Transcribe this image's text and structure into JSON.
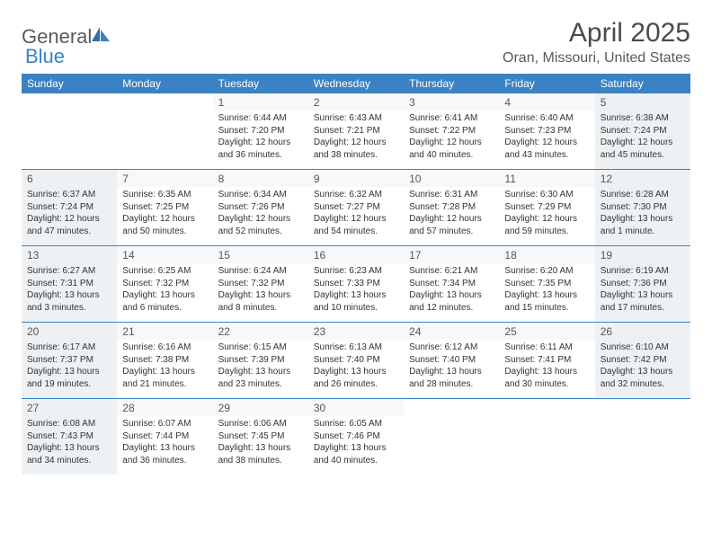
{
  "brand": {
    "word1": "General",
    "word2": "Blue"
  },
  "title": "April 2025",
  "location": "Oran, Missouri, United States",
  "colors": {
    "header_bg": "#3b82c4",
    "shaded_bg": "#eef1f3",
    "text": "#333333",
    "rule": "#3b82c4"
  },
  "daysOfWeek": [
    "Sunday",
    "Monday",
    "Tuesday",
    "Wednesday",
    "Thursday",
    "Friday",
    "Saturday"
  ],
  "weeks": [
    [
      null,
      null,
      {
        "n": "1",
        "sr": "Sunrise: 6:44 AM",
        "ss": "Sunset: 7:20 PM",
        "dl": "Daylight: 12 hours and 36 minutes."
      },
      {
        "n": "2",
        "sr": "Sunrise: 6:43 AM",
        "ss": "Sunset: 7:21 PM",
        "dl": "Daylight: 12 hours and 38 minutes."
      },
      {
        "n": "3",
        "sr": "Sunrise: 6:41 AM",
        "ss": "Sunset: 7:22 PM",
        "dl": "Daylight: 12 hours and 40 minutes."
      },
      {
        "n": "4",
        "sr": "Sunrise: 6:40 AM",
        "ss": "Sunset: 7:23 PM",
        "dl": "Daylight: 12 hours and 43 minutes."
      },
      {
        "n": "5",
        "sr": "Sunrise: 6:38 AM",
        "ss": "Sunset: 7:24 PM",
        "dl": "Daylight: 12 hours and 45 minutes."
      }
    ],
    [
      {
        "n": "6",
        "sr": "Sunrise: 6:37 AM",
        "ss": "Sunset: 7:24 PM",
        "dl": "Daylight: 12 hours and 47 minutes."
      },
      {
        "n": "7",
        "sr": "Sunrise: 6:35 AM",
        "ss": "Sunset: 7:25 PM",
        "dl": "Daylight: 12 hours and 50 minutes."
      },
      {
        "n": "8",
        "sr": "Sunrise: 6:34 AM",
        "ss": "Sunset: 7:26 PM",
        "dl": "Daylight: 12 hours and 52 minutes."
      },
      {
        "n": "9",
        "sr": "Sunrise: 6:32 AM",
        "ss": "Sunset: 7:27 PM",
        "dl": "Daylight: 12 hours and 54 minutes."
      },
      {
        "n": "10",
        "sr": "Sunrise: 6:31 AM",
        "ss": "Sunset: 7:28 PM",
        "dl": "Daylight: 12 hours and 57 minutes."
      },
      {
        "n": "11",
        "sr": "Sunrise: 6:30 AM",
        "ss": "Sunset: 7:29 PM",
        "dl": "Daylight: 12 hours and 59 minutes."
      },
      {
        "n": "12",
        "sr": "Sunrise: 6:28 AM",
        "ss": "Sunset: 7:30 PM",
        "dl": "Daylight: 13 hours and 1 minute."
      }
    ],
    [
      {
        "n": "13",
        "sr": "Sunrise: 6:27 AM",
        "ss": "Sunset: 7:31 PM",
        "dl": "Daylight: 13 hours and 3 minutes."
      },
      {
        "n": "14",
        "sr": "Sunrise: 6:25 AM",
        "ss": "Sunset: 7:32 PM",
        "dl": "Daylight: 13 hours and 6 minutes."
      },
      {
        "n": "15",
        "sr": "Sunrise: 6:24 AM",
        "ss": "Sunset: 7:32 PM",
        "dl": "Daylight: 13 hours and 8 minutes."
      },
      {
        "n": "16",
        "sr": "Sunrise: 6:23 AM",
        "ss": "Sunset: 7:33 PM",
        "dl": "Daylight: 13 hours and 10 minutes."
      },
      {
        "n": "17",
        "sr": "Sunrise: 6:21 AM",
        "ss": "Sunset: 7:34 PM",
        "dl": "Daylight: 13 hours and 12 minutes."
      },
      {
        "n": "18",
        "sr": "Sunrise: 6:20 AM",
        "ss": "Sunset: 7:35 PM",
        "dl": "Daylight: 13 hours and 15 minutes."
      },
      {
        "n": "19",
        "sr": "Sunrise: 6:19 AM",
        "ss": "Sunset: 7:36 PM",
        "dl": "Daylight: 13 hours and 17 minutes."
      }
    ],
    [
      {
        "n": "20",
        "sr": "Sunrise: 6:17 AM",
        "ss": "Sunset: 7:37 PM",
        "dl": "Daylight: 13 hours and 19 minutes."
      },
      {
        "n": "21",
        "sr": "Sunrise: 6:16 AM",
        "ss": "Sunset: 7:38 PM",
        "dl": "Daylight: 13 hours and 21 minutes."
      },
      {
        "n": "22",
        "sr": "Sunrise: 6:15 AM",
        "ss": "Sunset: 7:39 PM",
        "dl": "Daylight: 13 hours and 23 minutes."
      },
      {
        "n": "23",
        "sr": "Sunrise: 6:13 AM",
        "ss": "Sunset: 7:40 PM",
        "dl": "Daylight: 13 hours and 26 minutes."
      },
      {
        "n": "24",
        "sr": "Sunrise: 6:12 AM",
        "ss": "Sunset: 7:40 PM",
        "dl": "Daylight: 13 hours and 28 minutes."
      },
      {
        "n": "25",
        "sr": "Sunrise: 6:11 AM",
        "ss": "Sunset: 7:41 PM",
        "dl": "Daylight: 13 hours and 30 minutes."
      },
      {
        "n": "26",
        "sr": "Sunrise: 6:10 AM",
        "ss": "Sunset: 7:42 PM",
        "dl": "Daylight: 13 hours and 32 minutes."
      }
    ],
    [
      {
        "n": "27",
        "sr": "Sunrise: 6:08 AM",
        "ss": "Sunset: 7:43 PM",
        "dl": "Daylight: 13 hours and 34 minutes."
      },
      {
        "n": "28",
        "sr": "Sunrise: 6:07 AM",
        "ss": "Sunset: 7:44 PM",
        "dl": "Daylight: 13 hours and 36 minutes."
      },
      {
        "n": "29",
        "sr": "Sunrise: 6:06 AM",
        "ss": "Sunset: 7:45 PM",
        "dl": "Daylight: 13 hours and 38 minutes."
      },
      {
        "n": "30",
        "sr": "Sunrise: 6:05 AM",
        "ss": "Sunset: 7:46 PM",
        "dl": "Daylight: 13 hours and 40 minutes."
      },
      null,
      null,
      null
    ]
  ]
}
